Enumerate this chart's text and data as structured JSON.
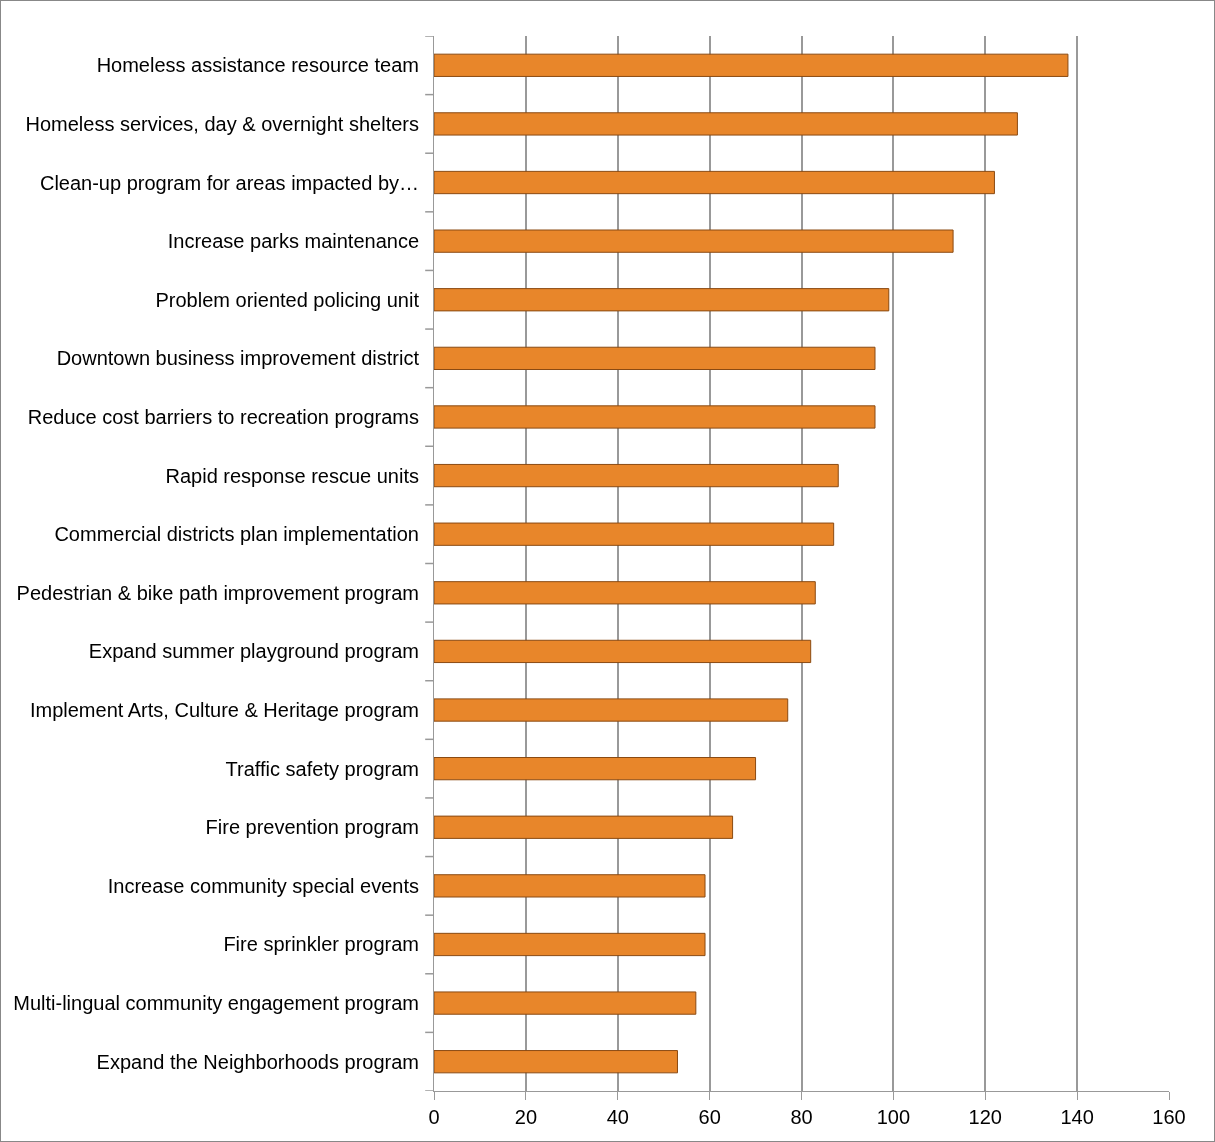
{
  "chart_data": {
    "type": "bar",
    "orientation": "horizontal",
    "categories": [
      "Homeless assistance resource team",
      "Homeless services, day & overnight shelters",
      "Clean-up program for areas impacted by…",
      "Increase parks maintenance",
      "Problem oriented policing unit",
      "Downtown business improvement district",
      "Reduce cost barriers to recreation programs",
      "Rapid response rescue units",
      "Commercial districts plan implementation",
      "Pedestrian & bike path improvement program",
      "Expand summer playground program",
      "Implement Arts, Culture & Heritage program",
      "Traffic safety program",
      "Fire prevention program",
      "Increase community special events",
      "Fire sprinkler program",
      "Multi-lingual community engagement program",
      "Expand the Neighborhoods program"
    ],
    "values": [
      138,
      127,
      122,
      113,
      99,
      96,
      96,
      88,
      87,
      83,
      82,
      77,
      70,
      65,
      59,
      59,
      57,
      53
    ],
    "color": "#e8862a",
    "xlim": [
      0,
      160
    ],
    "xticks": [
      0,
      20,
      40,
      60,
      80,
      100,
      120,
      140,
      160
    ],
    "grid": "x",
    "legend": false
  }
}
